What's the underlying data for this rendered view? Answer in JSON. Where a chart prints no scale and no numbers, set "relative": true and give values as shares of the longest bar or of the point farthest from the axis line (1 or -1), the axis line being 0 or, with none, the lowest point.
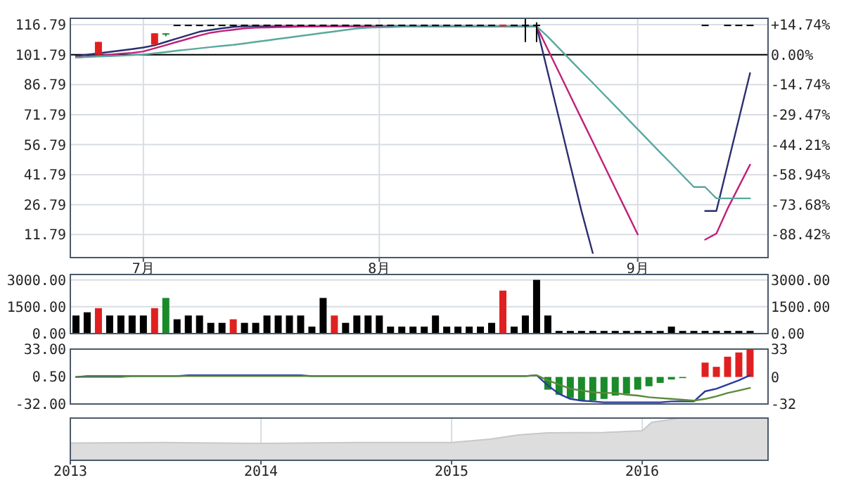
{
  "chart_data": [
    {
      "type": "candlestick",
      "categories": [
        null,
        null,
        null,
        null,
        null,
        null,
        "7月",
        null,
        null,
        null,
        null,
        null,
        null,
        null,
        null,
        null,
        null,
        null,
        null,
        null,
        null,
        null,
        null,
        null,
        null,
        null,
        null,
        "8月",
        null,
        null,
        null,
        null,
        null,
        null,
        null,
        null,
        null,
        null,
        null,
        null,
        null,
        null,
        null,
        null,
        null,
        null,
        null,
        null,
        null,
        null,
        "9月",
        null,
        null,
        null,
        null,
        null,
        null,
        null,
        null,
        null,
        null
      ],
      "ylim": [
        0.3,
        120
      ],
      "yticks": [
        {
          "value": 11.79,
          "label": "11.79"
        },
        {
          "value": 26.79,
          "label": "26.79"
        },
        {
          "value": 41.79,
          "label": "41.79"
        },
        {
          "value": 56.79,
          "label": "56.79"
        },
        {
          "value": 71.79,
          "label": "71.79"
        },
        {
          "value": 86.79,
          "label": "86.79"
        },
        {
          "value": 101.79,
          "label": "101.79"
        },
        {
          "value": 116.79,
          "label": "116.79"
        }
      ],
      "y2lim": [
        -99.71,
        17.89
      ],
      "y2ticks": [
        {
          "value": 14.74,
          "label": "+14.74%"
        },
        {
          "value": 0,
          "label": "0.00%"
        },
        {
          "value": -14.74,
          "label": "-14.74%"
        },
        {
          "value": -29.47,
          "label": "-29.47%"
        },
        {
          "value": -44.21,
          "label": "-44.21%"
        },
        {
          "value": -58.94,
          "label": "-58.94%"
        },
        {
          "value": -73.68,
          "label": "-73.68%"
        },
        {
          "value": -88.42,
          "label": "-88.42%"
        }
      ],
      "grid": true,
      "ref_lines": [
        {
          "axis": "y",
          "value": 101.79,
          "label": null,
          "color": "#000000"
        }
      ],
      "ohlc": [
        null,
        null,
        [
          101.8,
          108.2,
          101.8,
          108.2
        ],
        null,
        null,
        null,
        null,
        [
          106.8,
          112.5,
          106.8,
          112.5
        ],
        [
          112.5,
          112.5,
          111.0,
          112.5
        ],
        [
          116.79,
          116.79,
          116.79,
          116.79
        ],
        [
          116.79,
          116.79,
          116.79,
          116.79
        ],
        [
          116.79,
          116.79,
          116.79,
          116.79
        ],
        [
          116.79,
          116.79,
          116.79,
          116.79
        ],
        [
          116.79,
          116.79,
          116.79,
          116.79
        ],
        [
          116.79,
          116.79,
          116.79,
          116.79
        ],
        [
          116.79,
          116.79,
          116.79,
          116.79
        ],
        [
          116.79,
          116.79,
          116.79,
          116.79
        ],
        [
          116.79,
          116.79,
          116.79,
          116.79
        ],
        [
          116.79,
          116.79,
          116.79,
          116.79
        ],
        [
          116.79,
          116.79,
          116.79,
          116.79
        ],
        [
          116.79,
          116.79,
          116.79,
          116.79
        ],
        [
          116.79,
          116.79,
          116.79,
          116.79
        ],
        [
          116.79,
          116.79,
          116.79,
          116.79
        ],
        [
          116.79,
          116.79,
          116.79,
          116.79
        ],
        [
          116.79,
          116.79,
          116.79,
          116.79
        ],
        [
          116.79,
          116.79,
          116.79,
          116.79
        ],
        [
          116.79,
          116.79,
          116.79,
          116.79
        ],
        [
          116.79,
          116.79,
          116.79,
          116.79
        ],
        [
          116.79,
          116.79,
          116.79,
          116.79
        ],
        [
          116.79,
          116.79,
          116.79,
          116.79
        ],
        [
          116.79,
          116.79,
          116.79,
          116.79
        ],
        [
          116.79,
          116.79,
          116.79,
          116.79
        ],
        [
          116.79,
          116.79,
          116.79,
          116.79
        ],
        [
          116.79,
          116.79,
          116.79,
          116.79
        ],
        [
          116.79,
          116.79,
          116.79,
          116.79
        ],
        [
          116.79,
          116.79,
          116.79,
          116.79
        ],
        [
          116.79,
          116.79,
          116.79,
          116.79
        ],
        [
          116.79,
          116.79,
          116.79,
          116.79
        ],
        [
          116.0,
          116.79,
          116.0,
          116.79
        ],
        [
          116.79,
          116.79,
          116.79,
          116.79
        ],
        [
          116.79,
          119.9,
          108.1,
          116.79
        ],
        [
          116.79,
          118.0,
          108.1,
          116.79
        ],
        null,
        null,
        null,
        null,
        null,
        null,
        null,
        null,
        null,
        null,
        null,
        null,
        null,
        null,
        [
          116.79,
          116.79,
          116.79,
          116.79
        ],
        null,
        [
          116.79,
          116.79,
          116.79,
          116.79
        ],
        [
          116.79,
          116.79,
          116.79,
          116.79
        ],
        [
          116.79,
          116.79,
          116.79,
          116.79
        ]
      ],
      "colors": [
        null,
        null,
        "#e02020",
        null,
        null,
        null,
        null,
        "#e02020",
        "#1a8a2a",
        "#000000",
        "#000000",
        "#000000",
        "#000000",
        "#000000",
        "#000000",
        "#000000",
        "#000000",
        "#000000",
        "#000000",
        "#000000",
        "#000000",
        "#000000",
        "#000000",
        "#000000",
        "#000000",
        "#000000",
        "#000000",
        "#000000",
        "#000000",
        "#000000",
        "#000000",
        "#000000",
        "#000000",
        "#000000",
        "#000000",
        "#000000",
        "#000000",
        "#000000",
        "#e02020",
        "#000000",
        "#000000",
        "#000000",
        null,
        null,
        null,
        null,
        null,
        null,
        null,
        null,
        null,
        null,
        null,
        null,
        null,
        null,
        "#000000",
        null,
        "#000000",
        "#000000",
        "#000000"
      ],
      "series": [
        {
          "type": "line",
          "color": "#2b2f6e",
          "values": [
            101.1,
            101.8,
            102.5,
            103.2,
            103.9,
            104.6,
            105.4,
            106.5,
            108.2,
            109.9,
            111.6,
            113.3,
            114.2,
            115.0,
            115.7,
            116.0,
            116.0,
            116.0,
            116.0,
            116.0,
            116.0,
            116.0,
            116.0,
            116.0,
            116.0,
            116.0,
            116.0,
            116.0,
            116.0,
            116.0,
            116.0,
            116.0,
            116.0,
            116.0,
            116.0,
            116.0,
            116.0,
            116.0,
            116.0,
            116.0,
            116.0,
            116.0,
            92.9,
            69.8,
            46.6,
            23.5,
            2.6,
            null,
            null,
            null,
            null,
            null,
            null,
            null,
            null,
            null,
            23.6,
            23.6,
            46.6,
            69.6,
            92.6
          ]
        },
        {
          "type": "line",
          "color": "#c0207a",
          "values": [
            100.4,
            100.9,
            101.3,
            101.8,
            102.3,
            102.7,
            103.4,
            105.0,
            106.6,
            108.2,
            109.8,
            111.4,
            112.8,
            113.6,
            114.3,
            115.0,
            115.3,
            115.4,
            115.6,
            115.7,
            115.8,
            115.9,
            116.0,
            116.0,
            116.0,
            116.0,
            116.0,
            116.0,
            116.0,
            116.0,
            116.0,
            116.0,
            116.0,
            116.0,
            116.0,
            116.0,
            116.0,
            116.0,
            116.0,
            116.0,
            116.0,
            116.0,
            104.4,
            92.9,
            81.3,
            69.7,
            58.2,
            46.6,
            35.0,
            23.5,
            11.9,
            null,
            null,
            null,
            null,
            null,
            9.3,
            12.3,
            24.8,
            35.8,
            46.8
          ]
        },
        {
          "type": "line",
          "color": "#5aa8a0",
          "values": [
            100.4,
            100.6,
            100.9,
            101.1,
            101.3,
            101.6,
            101.9,
            102.5,
            103.1,
            103.8,
            104.4,
            105.0,
            105.6,
            106.2,
            106.7,
            107.4,
            108.2,
            108.9,
            109.7,
            110.4,
            111.2,
            111.9,
            112.7,
            113.4,
            114.2,
            114.9,
            115.3,
            115.5,
            115.6,
            115.8,
            115.9,
            116.0,
            116.0,
            116.0,
            116.0,
            116.0,
            116.0,
            116.0,
            116.0,
            116.0,
            116.0,
            116.0,
            110.8,
            105.0,
            99.2,
            93.4,
            87.7,
            81.9,
            76.1,
            70.3,
            64.5,
            58.7,
            52.9,
            47.2,
            41.4,
            35.6,
            35.6,
            29.9,
            29.9,
            29.9,
            29.9
          ]
        }
      ]
    },
    {
      "type": "bar",
      "tick_labels": "y",
      "categories": [
        null,
        null,
        null,
        null,
        null,
        null,
        null,
        null,
        null,
        null,
        null,
        null,
        null,
        null,
        null,
        null,
        null,
        null,
        null,
        null,
        null,
        null,
        null,
        null,
        null,
        null,
        null,
        null,
        null,
        null,
        null,
        null,
        null,
        null,
        null,
        null,
        null,
        null,
        null,
        null,
        null,
        null,
        null,
        null,
        null,
        null,
        null,
        null,
        null,
        null,
        null,
        null,
        null,
        null,
        null,
        null,
        null,
        null,
        null,
        null,
        null
      ],
      "ylim": [
        0,
        3300
      ],
      "yticks": [
        {
          "value": 0,
          "label": "0.00"
        },
        {
          "value": 1500,
          "label": "1500.00"
        },
        {
          "value": 3000,
          "label": "3000.00"
        }
      ],
      "y2lim": [
        0,
        3300
      ],
      "y2ticks": [
        {
          "value": 0,
          "label": "0.00"
        },
        {
          "value": 1500,
          "label": "1500.00"
        },
        {
          "value": 3000,
          "label": "3000.00"
        }
      ],
      "grid": "y",
      "values": [
        1010,
        1190,
        1420,
        1010,
        1010,
        1010,
        1010,
        1420,
        1990,
        800,
        1010,
        1010,
        600,
        600,
        800,
        600,
        600,
        1010,
        1010,
        1010,
        1010,
        390,
        1990,
        1010,
        600,
        1010,
        1010,
        1010,
        390,
        390,
        390,
        390,
        1010,
        390,
        390,
        390,
        390,
        600,
        2400,
        390,
        1010,
        3000,
        1010,
        150,
        150,
        150,
        150,
        150,
        150,
        150,
        150,
        150,
        150,
        390,
        150,
        150,
        150,
        150,
        150,
        150,
        150
      ],
      "colors": [
        "#000000",
        "#000000",
        "#e02020",
        "#000000",
        "#000000",
        "#000000",
        "#000000",
        "#e02020",
        "#1a8a2a",
        "#000000",
        "#000000",
        "#000000",
        "#000000",
        "#000000",
        "#e02020",
        "#000000",
        "#000000",
        "#000000",
        "#000000",
        "#000000",
        "#000000",
        "#000000",
        "#000000",
        "#e02020",
        "#000000",
        "#000000",
        "#000000",
        "#000000",
        "#000000",
        "#000000",
        "#000000",
        "#000000",
        "#000000",
        "#000000",
        "#000000",
        "#000000",
        "#000000",
        "#000000",
        "#e02020",
        "#000000",
        "#000000",
        "#000000",
        "#000000",
        "#000000",
        "#000000",
        "#000000",
        "#000000",
        "#000000",
        "#000000",
        "#000000",
        "#000000",
        "#000000",
        "#000000",
        "#000000",
        "#000000",
        "#000000",
        "#000000",
        "#000000",
        "#000000",
        "#000000",
        "#000000"
      ]
    },
    {
      "type": "line",
      "tick_labels": "y",
      "categories": [
        null,
        null,
        null,
        null,
        null,
        null,
        null,
        null,
        null,
        null,
        null,
        null,
        null,
        null,
        null,
        null,
        null,
        null,
        null,
        null,
        null,
        null,
        null,
        null,
        null,
        null,
        null,
        null,
        null,
        null,
        null,
        null,
        null,
        null,
        null,
        null,
        null,
        null,
        null,
        null,
        null,
        null,
        null,
        null,
        null,
        null,
        null,
        null,
        null,
        null,
        null,
        null,
        null,
        null,
        null,
        null,
        null,
        null,
        null,
        null,
        null
      ],
      "ylim": [
        -32,
        33
      ],
      "yticks": [
        {
          "value": -32,
          "label": "-32.00"
        },
        {
          "value": 0.5,
          "label": "0.50"
        },
        {
          "value": 33,
          "label": "33.00"
        }
      ],
      "y2lim": [
        -32,
        33
      ],
      "y2ticks": [
        -32,
        0,
        33
      ],
      "series": [
        {
          "type": "bar",
          "color": "#1a8a2a",
          "values": [
            null,
            null,
            null,
            null,
            null,
            null,
            null,
            null,
            null,
            null,
            null,
            null,
            null,
            null,
            null,
            null,
            null,
            null,
            null,
            null,
            null,
            null,
            null,
            null,
            null,
            null,
            null,
            null,
            null,
            null,
            null,
            null,
            null,
            null,
            null,
            null,
            null,
            null,
            null,
            null,
            null,
            null,
            -15,
            -21,
            -25,
            -28,
            -28,
            -26,
            -22,
            -20,
            -15,
            -11,
            -7,
            -3,
            -1,
            null,
            null,
            null,
            null,
            null,
            null
          ]
        },
        {
          "type": "bar",
          "color": "#e02020",
          "values": [
            null,
            null,
            null,
            null,
            null,
            null,
            null,
            null,
            null,
            null,
            null,
            null,
            null,
            null,
            null,
            null,
            null,
            null,
            null,
            null,
            null,
            null,
            null,
            null,
            null,
            null,
            null,
            null,
            null,
            null,
            null,
            null,
            null,
            null,
            null,
            null,
            null,
            null,
            null,
            null,
            null,
            null,
            null,
            null,
            null,
            null,
            null,
            null,
            null,
            null,
            null,
            null,
            null,
            null,
            null,
            null,
            17,
            12,
            24,
            29,
            33
          ]
        },
        {
          "type": "line",
          "color": "#2b3a9e",
          "values": [
            0,
            1,
            1,
            1,
            1,
            1,
            1,
            1,
            1,
            1,
            2,
            2,
            2,
            2,
            2,
            2,
            2,
            2,
            2,
            2,
            2,
            1,
            1,
            1,
            1,
            1,
            1,
            1,
            1,
            1,
            1,
            1,
            1,
            1,
            1,
            1,
            1,
            1,
            1,
            1,
            1,
            2,
            -10,
            -20,
            -26,
            -28,
            -29,
            -30,
            -30,
            -30,
            -30,
            -30,
            -30,
            -29,
            -29,
            -29,
            -17,
            -14,
            -9,
            -4,
            2
          ]
        },
        {
          "type": "line",
          "color": "#5a8a3a",
          "values": [
            0,
            0,
            0,
            0,
            0,
            1,
            1,
            1,
            1,
            1,
            1,
            1,
            1,
            1,
            1,
            1,
            1,
            1,
            1,
            1,
            1,
            1,
            1,
            1,
            1,
            1,
            1,
            1,
            1,
            1,
            1,
            1,
            1,
            1,
            1,
            1,
            1,
            1,
            1,
            1,
            1,
            2,
            -4,
            -9,
            -14,
            -16,
            -18,
            -19,
            -19,
            -21,
            -22,
            -24,
            -25,
            -26,
            -27,
            -28,
            -26,
            -23,
            -19,
            -16,
            -13
          ]
        }
      ]
    },
    {
      "type": "area",
      "relative": true,
      "tick_labels": "x",
      "grid": "x",
      "color": "#dddddd",
      "xlim": [
        2013,
        2016.66
      ],
      "xticks": [
        2013,
        2014,
        2015,
        2016
      ],
      "x": [
        2013,
        2013.5,
        2014,
        2014.5,
        2015,
        2015.2,
        2015.35,
        2015.5,
        2015.8,
        2016,
        2016.05,
        2016.2,
        2016.66
      ],
      "values": [
        0.41,
        0.42,
        0.4,
        0.42,
        0.42,
        0.5,
        0.6,
        0.65,
        0.66,
        0.7,
        0.9,
        1,
        1
      ]
    }
  ]
}
